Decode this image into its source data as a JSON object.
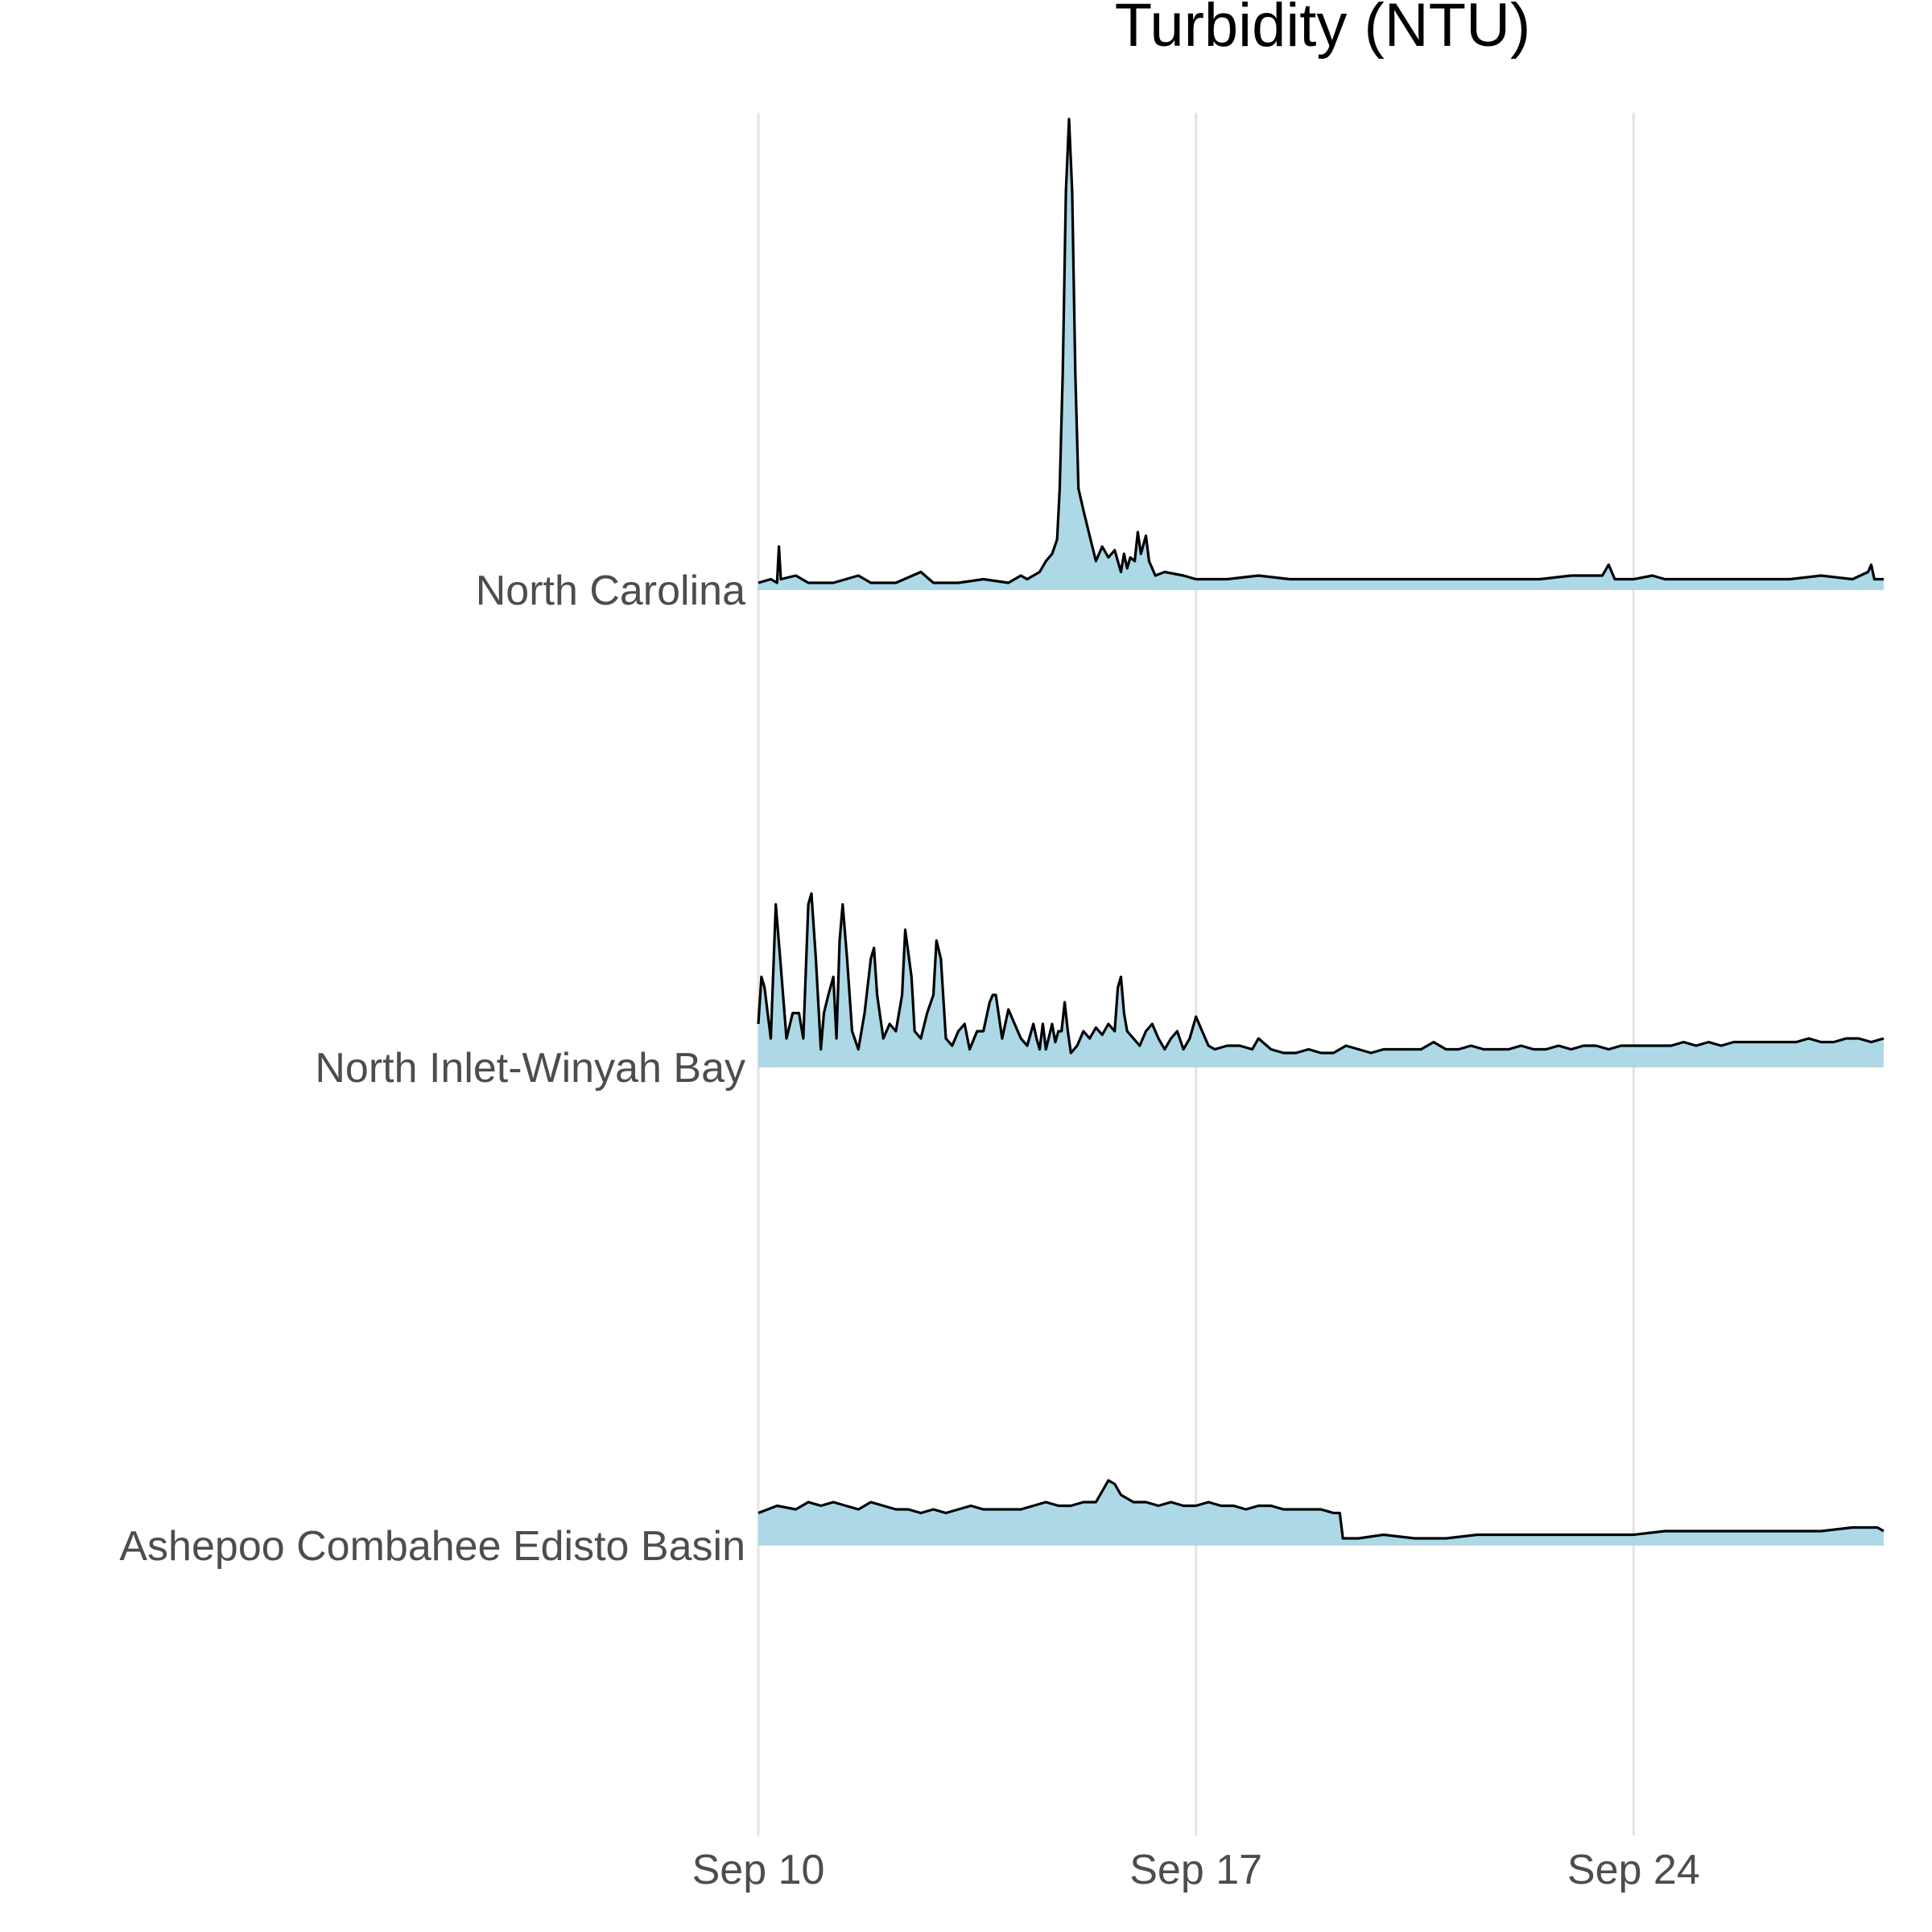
{
  "chart_data": {
    "type": "area",
    "subtype": "ridgeline",
    "title": "Turbidity (NTU)",
    "xlabel": "",
    "ylabel": "",
    "x_unit": "days since Sep 10",
    "x_ticks": [
      {
        "value": 0,
        "label": "Sep 10"
      },
      {
        "value": 7,
        "label": "Sep 17"
      },
      {
        "value": 14,
        "label": "Sep 24"
      }
    ],
    "xlim": [
      0,
      18
    ],
    "grid": true,
    "fill_color": "#add8e6",
    "line_color": "#000000",
    "series": [
      {
        "name": "North Carolina",
        "points": [
          [
            0,
            2
          ],
          [
            0.2,
            3
          ],
          [
            0.3,
            2
          ],
          [
            0.33,
            12
          ],
          [
            0.36,
            3
          ],
          [
            0.6,
            4
          ],
          [
            0.8,
            2
          ],
          [
            1.2,
            2
          ],
          [
            1.6,
            4
          ],
          [
            1.8,
            2
          ],
          [
            2.2,
            2
          ],
          [
            2.6,
            5
          ],
          [
            2.8,
            2
          ],
          [
            3.2,
            2
          ],
          [
            3.6,
            3
          ],
          [
            4.0,
            2
          ],
          [
            4.2,
            4
          ],
          [
            4.3,
            3
          ],
          [
            4.5,
            5
          ],
          [
            4.6,
            8
          ],
          [
            4.7,
            10
          ],
          [
            4.78,
            14
          ],
          [
            4.82,
            28
          ],
          [
            4.87,
            60
          ],
          [
            4.92,
            110
          ],
          [
            4.97,
            130
          ],
          [
            5.02,
            110
          ],
          [
            5.07,
            60
          ],
          [
            5.12,
            28
          ],
          [
            5.2,
            22
          ],
          [
            5.3,
            15
          ],
          [
            5.4,
            8
          ],
          [
            5.5,
            12
          ],
          [
            5.6,
            9
          ],
          [
            5.7,
            11
          ],
          [
            5.8,
            5
          ],
          [
            5.85,
            10
          ],
          [
            5.9,
            6
          ],
          [
            5.95,
            9
          ],
          [
            6.02,
            8
          ],
          [
            6.07,
            16
          ],
          [
            6.12,
            10
          ],
          [
            6.2,
            15
          ],
          [
            6.25,
            8
          ],
          [
            6.35,
            4
          ],
          [
            6.5,
            5
          ],
          [
            6.8,
            4
          ],
          [
            7.0,
            3
          ],
          [
            7.5,
            3
          ],
          [
            8.0,
            4
          ],
          [
            8.5,
            3
          ],
          [
            9.0,
            3
          ],
          [
            9.5,
            3
          ],
          [
            10.0,
            3
          ],
          [
            10.5,
            3
          ],
          [
            11.0,
            3
          ],
          [
            11.5,
            3
          ],
          [
            12.0,
            3
          ],
          [
            12.5,
            3
          ],
          [
            13.0,
            4
          ],
          [
            13.5,
            4
          ],
          [
            13.6,
            7
          ],
          [
            13.7,
            3
          ],
          [
            14.0,
            3
          ],
          [
            14.3,
            4
          ],
          [
            14.5,
            3
          ],
          [
            15.0,
            3
          ],
          [
            15.5,
            3
          ],
          [
            16.0,
            3
          ],
          [
            16.5,
            3
          ],
          [
            17.0,
            4
          ],
          [
            17.5,
            3
          ],
          [
            17.75,
            5
          ],
          [
            17.8,
            7
          ],
          [
            17.85,
            3
          ],
          [
            18.0,
            3
          ]
        ]
      },
      {
        "name": "North Inlet-Winyah Bay",
        "points": [
          [
            0,
            12
          ],
          [
            0.05,
            25
          ],
          [
            0.1,
            22
          ],
          [
            0.15,
            15
          ],
          [
            0.2,
            8
          ],
          [
            0.28,
            45
          ],
          [
            0.35,
            30
          ],
          [
            0.45,
            8
          ],
          [
            0.55,
            15
          ],
          [
            0.65,
            15
          ],
          [
            0.72,
            8
          ],
          [
            0.8,
            45
          ],
          [
            0.85,
            48
          ],
          [
            0.92,
            30
          ],
          [
            1.0,
            5
          ],
          [
            1.05,
            15
          ],
          [
            1.12,
            20
          ],
          [
            1.2,
            25
          ],
          [
            1.25,
            8
          ],
          [
            1.3,
            35
          ],
          [
            1.35,
            45
          ],
          [
            1.42,
            30
          ],
          [
            1.5,
            10
          ],
          [
            1.6,
            5
          ],
          [
            1.7,
            15
          ],
          [
            1.8,
            30
          ],
          [
            1.85,
            33
          ],
          [
            1.9,
            20
          ],
          [
            2.0,
            8
          ],
          [
            2.1,
            12
          ],
          [
            2.2,
            10
          ],
          [
            2.3,
            20
          ],
          [
            2.35,
            38
          ],
          [
            2.45,
            25
          ],
          [
            2.5,
            10
          ],
          [
            2.6,
            8
          ],
          [
            2.7,
            15
          ],
          [
            2.8,
            20
          ],
          [
            2.85,
            35
          ],
          [
            2.92,
            30
          ],
          [
            3.0,
            8
          ],
          [
            3.1,
            6
          ],
          [
            3.2,
            10
          ],
          [
            3.3,
            12
          ],
          [
            3.38,
            5
          ],
          [
            3.5,
            10
          ],
          [
            3.6,
            10
          ],
          [
            3.7,
            18
          ],
          [
            3.75,
            20
          ],
          [
            3.8,
            20
          ],
          [
            3.9,
            8
          ],
          [
            4.0,
            16
          ],
          [
            4.1,
            12
          ],
          [
            4.2,
            8
          ],
          [
            4.3,
            6
          ],
          [
            4.4,
            12
          ],
          [
            4.45,
            8
          ],
          [
            4.5,
            5
          ],
          [
            4.55,
            12
          ],
          [
            4.6,
            5
          ],
          [
            4.7,
            12
          ],
          [
            4.75,
            7
          ],
          [
            4.8,
            10
          ],
          [
            4.85,
            10
          ],
          [
            4.9,
            18
          ],
          [
            4.95,
            10
          ],
          [
            5.0,
            4
          ],
          [
            5.1,
            6
          ],
          [
            5.2,
            10
          ],
          [
            5.3,
            8
          ],
          [
            5.4,
            11
          ],
          [
            5.5,
            9
          ],
          [
            5.6,
            12
          ],
          [
            5.7,
            10
          ],
          [
            5.75,
            22
          ],
          [
            5.8,
            25
          ],
          [
            5.85,
            15
          ],
          [
            5.9,
            10
          ],
          [
            6.0,
            8
          ],
          [
            6.1,
            6
          ],
          [
            6.2,
            10
          ],
          [
            6.3,
            12
          ],
          [
            6.4,
            8
          ],
          [
            6.5,
            5
          ],
          [
            6.6,
            8
          ],
          [
            6.7,
            10
          ],
          [
            6.8,
            5
          ],
          [
            6.9,
            8
          ],
          [
            7.0,
            14
          ],
          [
            7.1,
            10
          ],
          [
            7.2,
            6
          ],
          [
            7.3,
            5
          ],
          [
            7.5,
            6
          ],
          [
            7.7,
            6
          ],
          [
            7.9,
            5
          ],
          [
            8.0,
            8
          ],
          [
            8.2,
            5
          ],
          [
            8.4,
            4
          ],
          [
            8.6,
            4
          ],
          [
            8.8,
            5
          ],
          [
            9.0,
            4
          ],
          [
            9.2,
            4
          ],
          [
            9.4,
            6
          ],
          [
            9.6,
            5
          ],
          [
            9.8,
            4
          ],
          [
            10.0,
            5
          ],
          [
            10.2,
            5
          ],
          [
            10.4,
            5
          ],
          [
            10.6,
            5
          ],
          [
            10.8,
            7
          ],
          [
            11.0,
            5
          ],
          [
            11.2,
            5
          ],
          [
            11.4,
            6
          ],
          [
            11.6,
            5
          ],
          [
            11.8,
            5
          ],
          [
            12.0,
            5
          ],
          [
            12.2,
            6
          ],
          [
            12.4,
            5
          ],
          [
            12.6,
            5
          ],
          [
            12.8,
            6
          ],
          [
            13.0,
            5
          ],
          [
            13.2,
            6
          ],
          [
            13.4,
            6
          ],
          [
            13.6,
            5
          ],
          [
            13.8,
            6
          ],
          [
            14.0,
            6
          ],
          [
            14.2,
            6
          ],
          [
            14.4,
            6
          ],
          [
            14.6,
            6
          ],
          [
            14.8,
            7
          ],
          [
            15.0,
            6
          ],
          [
            15.2,
            7
          ],
          [
            15.4,
            6
          ],
          [
            15.6,
            7
          ],
          [
            15.8,
            7
          ],
          [
            16.0,
            7
          ],
          [
            16.2,
            7
          ],
          [
            16.4,
            7
          ],
          [
            16.6,
            7
          ],
          [
            16.8,
            8
          ],
          [
            17.0,
            7
          ],
          [
            17.2,
            7
          ],
          [
            17.4,
            8
          ],
          [
            17.6,
            8
          ],
          [
            17.8,
            7
          ],
          [
            18.0,
            8
          ]
        ]
      },
      {
        "name": "Ashepoo Combahee Edisto Basin",
        "points": [
          [
            0,
            9
          ],
          [
            0.3,
            11
          ],
          [
            0.6,
            10
          ],
          [
            0.8,
            12
          ],
          [
            1.0,
            11
          ],
          [
            1.2,
            12
          ],
          [
            1.4,
            11
          ],
          [
            1.6,
            10
          ],
          [
            1.8,
            12
          ],
          [
            2.0,
            11
          ],
          [
            2.2,
            10
          ],
          [
            2.4,
            10
          ],
          [
            2.6,
            9
          ],
          [
            2.8,
            10
          ],
          [
            3.0,
            9
          ],
          [
            3.2,
            10
          ],
          [
            3.4,
            11
          ],
          [
            3.6,
            10
          ],
          [
            3.8,
            10
          ],
          [
            4.0,
            10
          ],
          [
            4.2,
            10
          ],
          [
            4.4,
            11
          ],
          [
            4.6,
            12
          ],
          [
            4.8,
            11
          ],
          [
            5.0,
            11
          ],
          [
            5.2,
            12
          ],
          [
            5.4,
            12
          ],
          [
            5.5,
            15
          ],
          [
            5.6,
            18
          ],
          [
            5.7,
            17
          ],
          [
            5.8,
            14
          ],
          [
            6.0,
            12
          ],
          [
            6.2,
            12
          ],
          [
            6.4,
            11
          ],
          [
            6.6,
            12
          ],
          [
            6.8,
            11
          ],
          [
            7.0,
            11
          ],
          [
            7.2,
            12
          ],
          [
            7.4,
            11
          ],
          [
            7.6,
            11
          ],
          [
            7.8,
            10
          ],
          [
            8.0,
            11
          ],
          [
            8.2,
            11
          ],
          [
            8.4,
            10
          ],
          [
            8.6,
            10
          ],
          [
            8.8,
            10
          ],
          [
            9.0,
            10
          ],
          [
            9.2,
            9
          ],
          [
            9.3,
            9
          ],
          [
            9.35,
            2
          ],
          [
            9.6,
            2
          ],
          [
            10.0,
            3
          ],
          [
            10.5,
            2
          ],
          [
            11.0,
            2
          ],
          [
            11.5,
            3
          ],
          [
            12.0,
            3
          ],
          [
            12.5,
            3
          ],
          [
            13.0,
            3
          ],
          [
            13.5,
            3
          ],
          [
            14.0,
            3
          ],
          [
            14.5,
            4
          ],
          [
            15.0,
            4
          ],
          [
            15.5,
            4
          ],
          [
            16.0,
            4
          ],
          [
            16.5,
            4
          ],
          [
            17.0,
            4
          ],
          [
            17.5,
            5
          ],
          [
            17.9,
            5
          ],
          [
            18.0,
            4
          ]
        ]
      }
    ]
  }
}
